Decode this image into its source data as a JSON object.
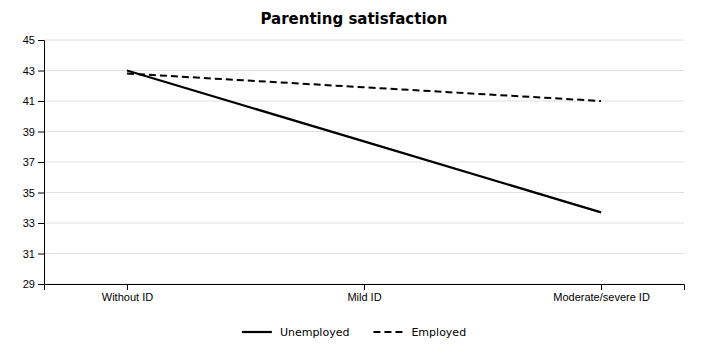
{
  "chart_data": {
    "type": "line",
    "title": "Parenting satisfaction",
    "categories": [
      "Without ID",
      "Mild ID",
      "Moderate/severe ID"
    ],
    "series": [
      {
        "name": "Unemployed",
        "color": "#000000",
        "line_style": "solid",
        "values": [
          43.0,
          38.35,
          33.7
        ]
      },
      {
        "name": "Employed",
        "color": "#000000",
        "line_style": "dashed",
        "values": [
          42.8,
          41.9,
          41.0
        ]
      }
    ],
    "ylim": [
      29,
      45
    ],
    "yticks": [
      29,
      31,
      33,
      35,
      37,
      39,
      41,
      43,
      45
    ],
    "grid": true,
    "legend": "bottom"
  }
}
